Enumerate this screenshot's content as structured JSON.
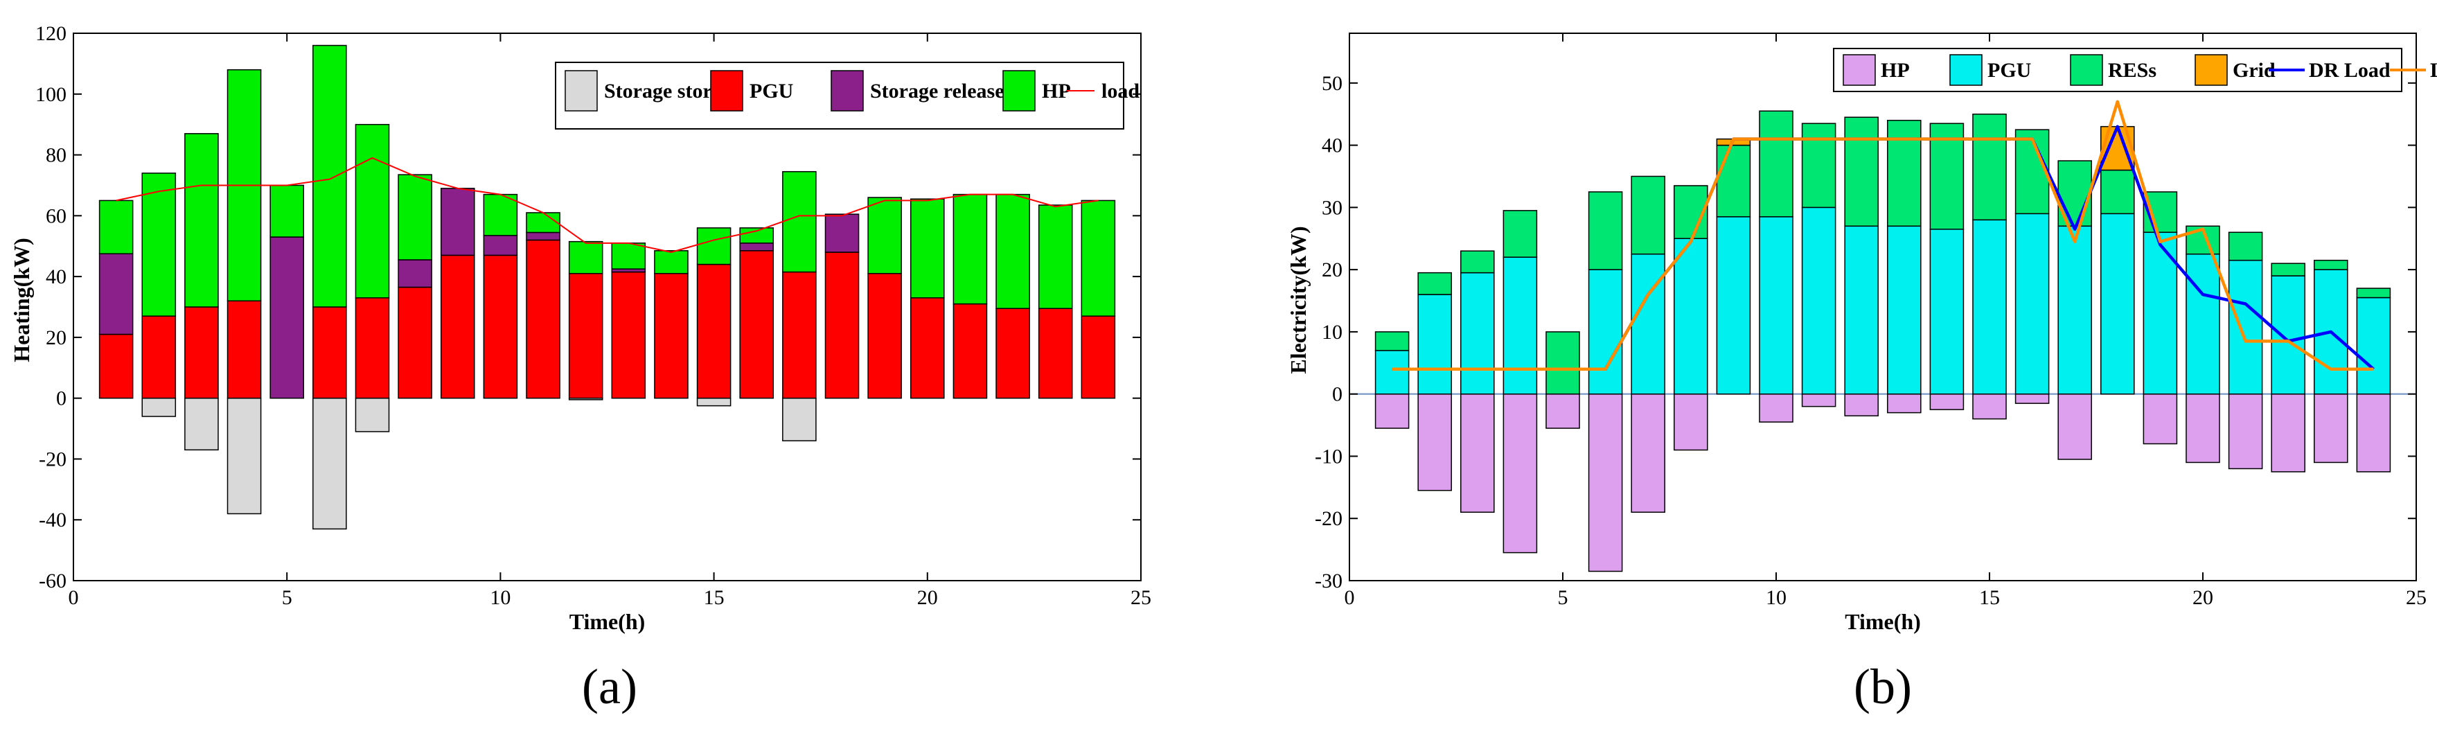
{
  "figure": {
    "background": "#ffffff"
  },
  "chart_data": [
    {
      "type": "bar",
      "panel_label": "(a)",
      "xlabel": "Time(h)",
      "ylabel": "Heating(kW)",
      "xlim": [
        0,
        25
      ],
      "ylim": [
        -60,
        120
      ],
      "xticks": [
        0,
        5,
        10,
        15,
        20,
        25
      ],
      "yticks": [
        -60,
        -40,
        -20,
        0,
        20,
        40,
        60,
        80,
        100,
        120
      ],
      "x": [
        1,
        2,
        3,
        4,
        5,
        6,
        7,
        8,
        9,
        10,
        11,
        12,
        13,
        14,
        15,
        16,
        17,
        18,
        19,
        20,
        21,
        22,
        23,
        24
      ],
      "series": [
        {
          "name": "Storage store",
          "kind": "bar",
          "color": "#d9d9d9",
          "values": [
            0,
            -6,
            -17,
            -38,
            0,
            -43,
            -11,
            0,
            0,
            0,
            0,
            -0.5,
            0,
            0,
            -2.5,
            0,
            -14,
            0,
            0,
            0,
            0,
            0,
            0,
            0
          ]
        },
        {
          "name": "PGU",
          "kind": "bar",
          "color": "#ff0000",
          "values": [
            21,
            27,
            30,
            32,
            0,
            30,
            33,
            36.5,
            47,
            47,
            52,
            41,
            41.5,
            41,
            44,
            48.5,
            41.5,
            48,
            41,
            33,
            31,
            29.5,
            29.5,
            27
          ]
        },
        {
          "name": "Storage release",
          "kind": "bar",
          "color": "#8b208b",
          "values": [
            26.5,
            0,
            0,
            0,
            53,
            0,
            0,
            9,
            22,
            6.5,
            2.5,
            0,
            1,
            0,
            0,
            2.5,
            0,
            12.5,
            0,
            0,
            0,
            0,
            0,
            0
          ]
        },
        {
          "name": "HP",
          "kind": "bar",
          "color": "#00ee00",
          "values": [
            17.5,
            47,
            57,
            76,
            17,
            86,
            57,
            28,
            0,
            13.5,
            6.5,
            10.5,
            8.5,
            7.5,
            12,
            5,
            33,
            0,
            25,
            32.5,
            36,
            37.5,
            34,
            38
          ]
        },
        {
          "name": "load",
          "kind": "line",
          "color": "#ff0000",
          "values": [
            65,
            68,
            70,
            70,
            70,
            72,
            79,
            73,
            69,
            67,
            61,
            51,
            51,
            48,
            52,
            55,
            60,
            60,
            65,
            65,
            67,
            67,
            63,
            65
          ]
        }
      ],
      "legend": {
        "position": "top-right",
        "entries": [
          "Storage store",
          "PGU",
          "Storage release",
          "HP",
          "load"
        ]
      }
    },
    {
      "type": "bar",
      "panel_label": "(b)",
      "xlabel": "Time(h)",
      "ylabel": "Electricity(kW)",
      "xlim": [
        0,
        25
      ],
      "ylim": [
        -30,
        58
      ],
      "xticks": [
        0,
        5,
        10,
        15,
        20,
        25
      ],
      "yticks": [
        -30,
        -20,
        -10,
        0,
        10,
        20,
        30,
        40,
        50
      ],
      "zero_line_color": "#6b8ec2",
      "x": [
        1,
        2,
        3,
        4,
        5,
        6,
        7,
        8,
        9,
        10,
        11,
        12,
        13,
        14,
        15,
        16,
        17,
        18,
        19,
        20,
        21,
        22,
        23,
        24
      ],
      "series": [
        {
          "name": "HP",
          "kind": "bar",
          "color": "#dda0ee",
          "values": [
            -5.5,
            -15.5,
            -19,
            -25.5,
            -5.5,
            -28.5,
            -19,
            -9,
            0,
            -4.5,
            -2,
            -3.5,
            -3,
            -2.5,
            -4,
            -1.5,
            -10.5,
            0,
            -8,
            -11,
            -12,
            -12.5,
            -11,
            -12.5
          ]
        },
        {
          "name": "PGU",
          "kind": "bar",
          "color": "#00f0f0",
          "values": [
            7,
            16,
            19.5,
            22,
            0,
            20,
            22.5,
            25,
            28.5,
            28.5,
            30,
            27,
            27,
            26.5,
            28,
            29,
            27,
            29,
            26,
            22.5,
            21.5,
            19,
            20,
            15.5
          ]
        },
        {
          "name": "RESs",
          "kind": "bar",
          "color": "#00e673",
          "values": [
            3,
            3.5,
            3.5,
            7.5,
            10,
            12.5,
            12.5,
            8.5,
            11.5,
            17,
            13.5,
            17.5,
            17,
            17,
            17,
            13.5,
            10.5,
            7,
            6.5,
            4.5,
            4.5,
            2,
            1.5,
            1.5
          ]
        },
        {
          "name": "Grid",
          "kind": "bar",
          "color": "#ffa500",
          "values": [
            0,
            0,
            0,
            0,
            0,
            0,
            0,
            0,
            1,
            0,
            0,
            0,
            0,
            0,
            0,
            0,
            0,
            7,
            0,
            0,
            0,
            0,
            0,
            0
          ]
        },
        {
          "name": "DR Load",
          "kind": "line",
          "color": "#0000ff",
          "values": [
            4,
            4,
            4,
            4,
            4,
            4,
            16,
            24.5,
            41,
            41,
            41,
            41,
            41,
            41,
            41,
            41,
            26.5,
            43,
            24,
            16,
            14.5,
            8.5,
            10,
            4
          ]
        },
        {
          "name": "Load",
          "kind": "line",
          "color": "#ff8c00",
          "values": [
            4,
            4,
            4,
            4,
            4,
            4,
            16,
            24.5,
            41,
            41,
            41,
            41,
            41,
            41,
            41,
            41,
            24.5,
            47,
            24.5,
            26.5,
            8.5,
            8.5,
            4,
            4
          ]
        }
      ],
      "legend": {
        "position": "top-right",
        "entries": [
          "HP",
          "PGU",
          "RESs",
          "Grid",
          "DR Load",
          "Load"
        ]
      }
    }
  ]
}
